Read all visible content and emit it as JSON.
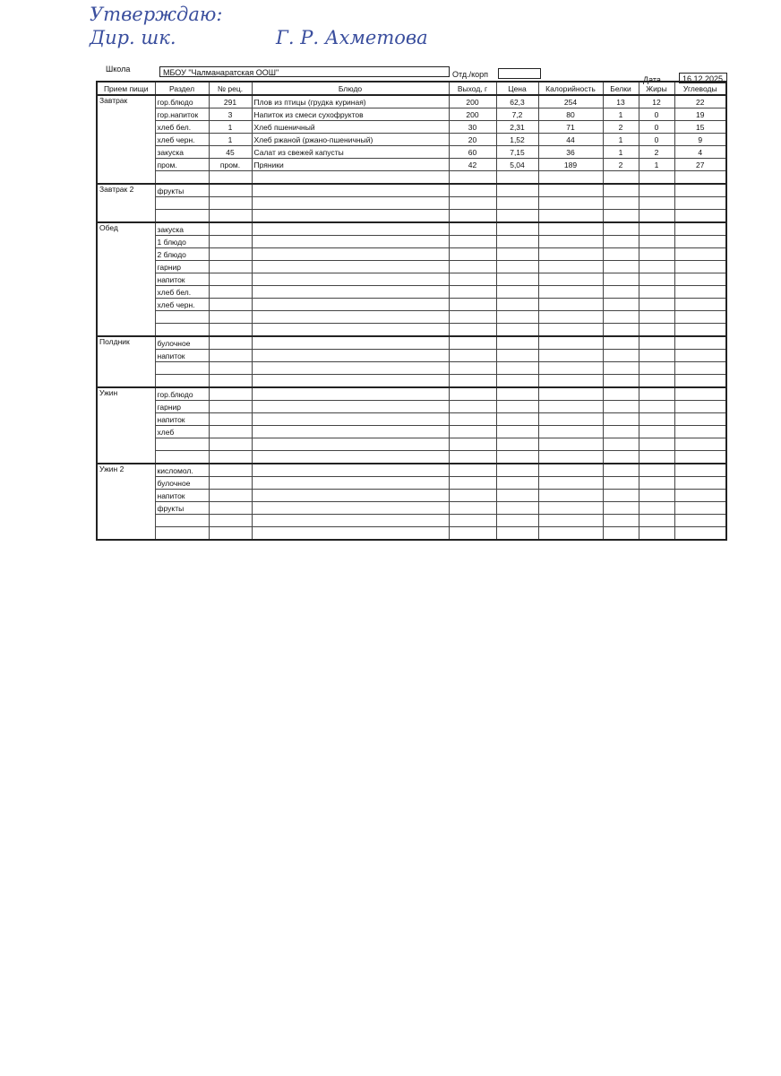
{
  "approval": {
    "title": "Утверждаю:",
    "position": "Дир. шк.",
    "name": "Г. Р. Ахметова"
  },
  "header": {
    "school_label": "Школа",
    "school": "МБОУ \"Чалманаратская ООШ\"",
    "department_label": "Отд./корп",
    "date_label": "Дата",
    "date": "16.12.2025"
  },
  "table": {
    "columns": [
      "Прием пищи",
      "Раздел",
      "№ рец.",
      "Блюдо",
      "Выход, г",
      "Цена",
      "Калорийность",
      "Белки",
      "Жиры",
      "Углеводы"
    ],
    "meals": [
      {
        "name": "Завтрак",
        "items": [
          {
            "section": "гор.блюдо",
            "recipe": "291",
            "dish": "Плов из птицы (грудка куриная)",
            "yield": "200",
            "price": "62,3",
            "kcal": "254",
            "protein": "13",
            "fat": "12",
            "carbs": "22"
          },
          {
            "section": "гор.напиток",
            "recipe": "3",
            "dish": "Напиток из смеси сухофруктов",
            "yield": "200",
            "price": "7,2",
            "kcal": "80",
            "protein": "1",
            "fat": "0",
            "carbs": "19"
          },
          {
            "section": "хлеб бел.",
            "recipe": "1",
            "dish": "Хлеб пшеничный",
            "yield": "30",
            "price": "2,31",
            "kcal": "71",
            "protein": "2",
            "fat": "0",
            "carbs": "15"
          },
          {
            "section": "хлеб черн.",
            "recipe": "1",
            "dish": "Хлеб ржаной (ржано-пшеничный)",
            "yield": "20",
            "price": "1,52",
            "kcal": "44",
            "protein": "1",
            "fat": "0",
            "carbs": "9"
          },
          {
            "section": "закуска",
            "recipe": "45",
            "dish": "Салат из свежей капусты",
            "yield": "60",
            "price": "7,15",
            "kcal": "36",
            "protein": "1",
            "fat": "2",
            "carbs": "4"
          },
          {
            "section": "пром.",
            "recipe": "пром.",
            "dish": "Пряники",
            "yield": "42",
            "price": "5,04",
            "kcal": "189",
            "protein": "2",
            "fat": "1",
            "carbs": "27"
          }
        ]
      },
      {
        "name": "Завтрак 2",
        "items": [
          {
            "section": "фрукты"
          }
        ]
      },
      {
        "name": "Обед",
        "items": [
          {
            "section": "закуска"
          },
          {
            "section": "1 блюдо"
          },
          {
            "section": "2 блюдо"
          },
          {
            "section": "гарнир"
          },
          {
            "section": "напиток"
          },
          {
            "section": "хлеб бел."
          },
          {
            "section": "хлеб черн."
          }
        ]
      },
      {
        "name": "Полдник",
        "items": [
          {
            "section": "булочное"
          },
          {
            "section": "напиток"
          }
        ]
      },
      {
        "name": "Ужин",
        "items": [
          {
            "section": "гор.блюдо"
          },
          {
            "section": "гарнир"
          },
          {
            "section": "напиток"
          },
          {
            "section": "хлеб"
          }
        ]
      },
      {
        "name": "Ужин 2",
        "items": [
          {
            "section": "кисломол."
          },
          {
            "section": "булочное"
          },
          {
            "section": "напиток"
          },
          {
            "section": "фрукты"
          }
        ]
      }
    ]
  }
}
